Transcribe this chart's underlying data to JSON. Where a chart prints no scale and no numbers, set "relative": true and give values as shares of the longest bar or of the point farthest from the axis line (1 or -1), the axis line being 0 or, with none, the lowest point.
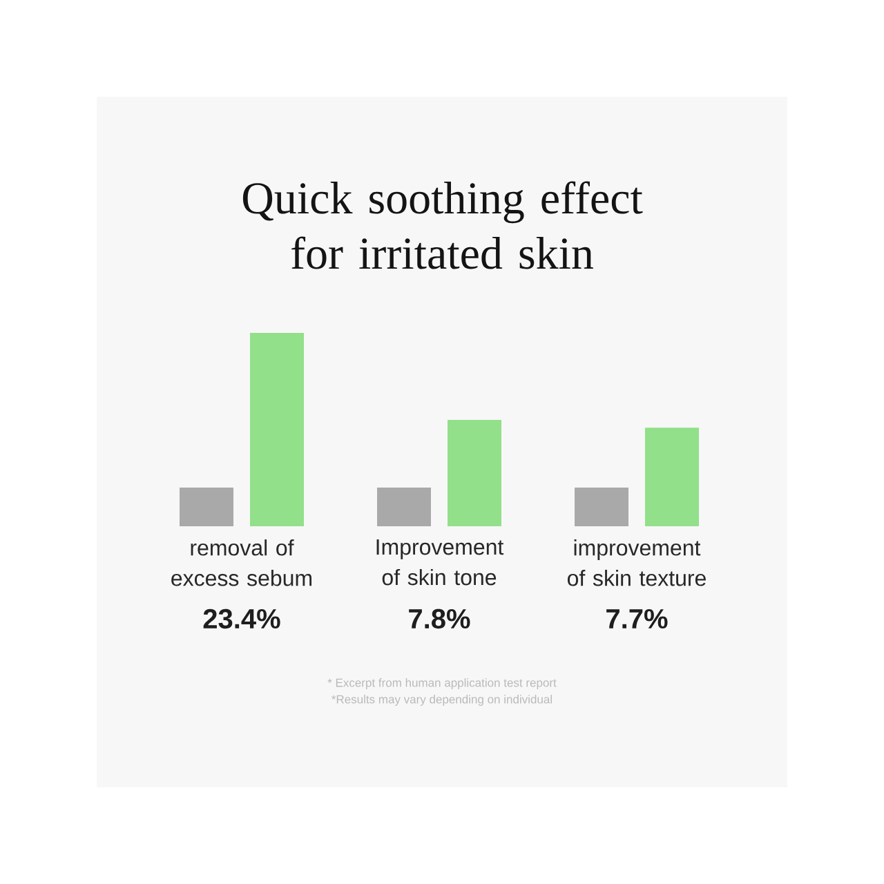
{
  "chart_data": {
    "type": "bar",
    "title": "Quick soothing effect for irritated skin",
    "relative": true,
    "categories": [
      "removal of excess sebum",
      "Improvement of skin tone",
      "improvement of skin texture"
    ],
    "series": [
      {
        "color": "#a9a9a9",
        "values": [
          0.2,
          0.2,
          0.2
        ]
      },
      {
        "color": "#92e08a",
        "values": [
          1,
          0.55,
          0.51
        ]
      }
    ],
    "annotations": [
      "23.4%",
      "7.8%",
      "7.7%",
      "* Excerpt from human application test report",
      "*Results may vary depending on individual"
    ]
  }
}
